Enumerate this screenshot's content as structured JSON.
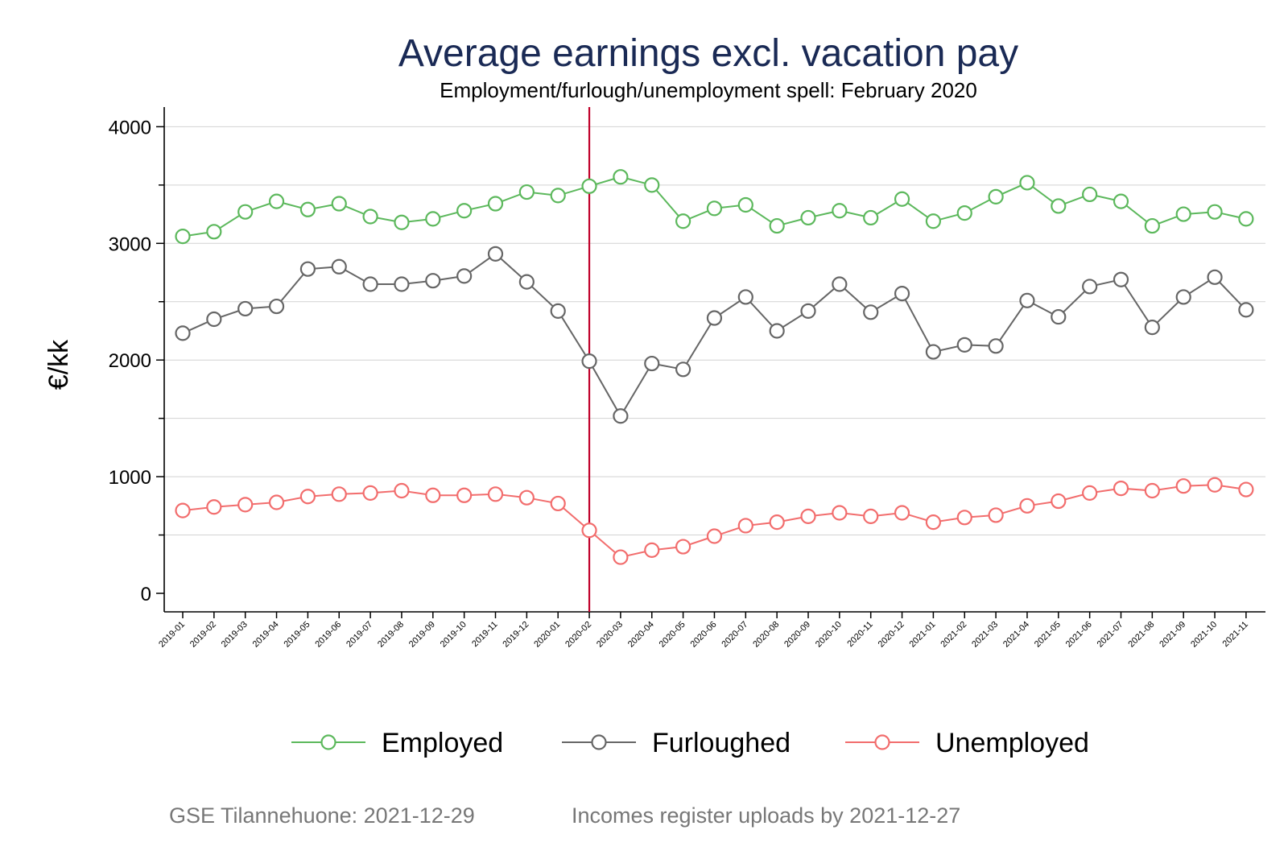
{
  "chart_data": {
    "type": "line",
    "title": "Average earnings excl. vacation pay",
    "subtitle": "Employment/furlough/unemployment spell: February 2020",
    "ylabel": "€/kk",
    "xlabel": "",
    "ylim": [
      -150,
      4200
    ],
    "yticks": [
      0,
      1000,
      2000,
      3000,
      4000
    ],
    "grid": true,
    "legend_position": "bottom",
    "reference_line": {
      "x": "2020-02",
      "color": "#c0002a"
    },
    "categories": [
      "2019-01",
      "2019-02",
      "2019-03",
      "2019-04",
      "2019-05",
      "2019-06",
      "2019-07",
      "2019-08",
      "2019-09",
      "2019-10",
      "2019-11",
      "2019-12",
      "2020-01",
      "2020-02",
      "2020-03",
      "2020-04",
      "2020-05",
      "2020-06",
      "2020-07",
      "2020-08",
      "2020-09",
      "2020-10",
      "2020-11",
      "2020-12",
      "2021-01",
      "2021-02",
      "2021-03",
      "2021-04",
      "2021-05",
      "2021-06",
      "2021-07",
      "2021-08",
      "2021-09",
      "2021-10",
      "2021-11"
    ],
    "series": [
      {
        "name": "Employed",
        "color": "#5cb85c",
        "values": [
          3060,
          3100,
          3270,
          3360,
          3290,
          3340,
          3230,
          3180,
          3210,
          3280,
          3340,
          3440,
          3410,
          3490,
          3570,
          3500,
          3190,
          3300,
          3330,
          3150,
          3220,
          3280,
          3220,
          3380,
          3190,
          3260,
          3400,
          3520,
          3320,
          3420,
          3360,
          3150,
          3250,
          3270,
          3210
        ]
      },
      {
        "name": "Furloughed",
        "color": "#666666",
        "values": [
          2230,
          2350,
          2440,
          2460,
          2780,
          2800,
          2650,
          2650,
          2680,
          2720,
          2910,
          2670,
          2420,
          1990,
          1520,
          1970,
          1920,
          2360,
          2540,
          2250,
          2420,
          2650,
          2410,
          2570,
          2070,
          2130,
          2120,
          2510,
          2370,
          2630,
          2690,
          2280,
          2540,
          2710,
          2430
        ]
      },
      {
        "name": "Unemployed",
        "color": "#f26d6d",
        "values": [
          710,
          740,
          760,
          780,
          830,
          850,
          860,
          880,
          840,
          840,
          850,
          820,
          770,
          540,
          310,
          370,
          400,
          490,
          580,
          610,
          660,
          690,
          660,
          690,
          610,
          650,
          670,
          750,
          790,
          860,
          900,
          880,
          920,
          930,
          890
        ]
      }
    ]
  },
  "footer": {
    "source_left": "GSE Tilannehuone: 2021-12-29",
    "source_right": "Incomes register uploads by 2021-12-27"
  }
}
